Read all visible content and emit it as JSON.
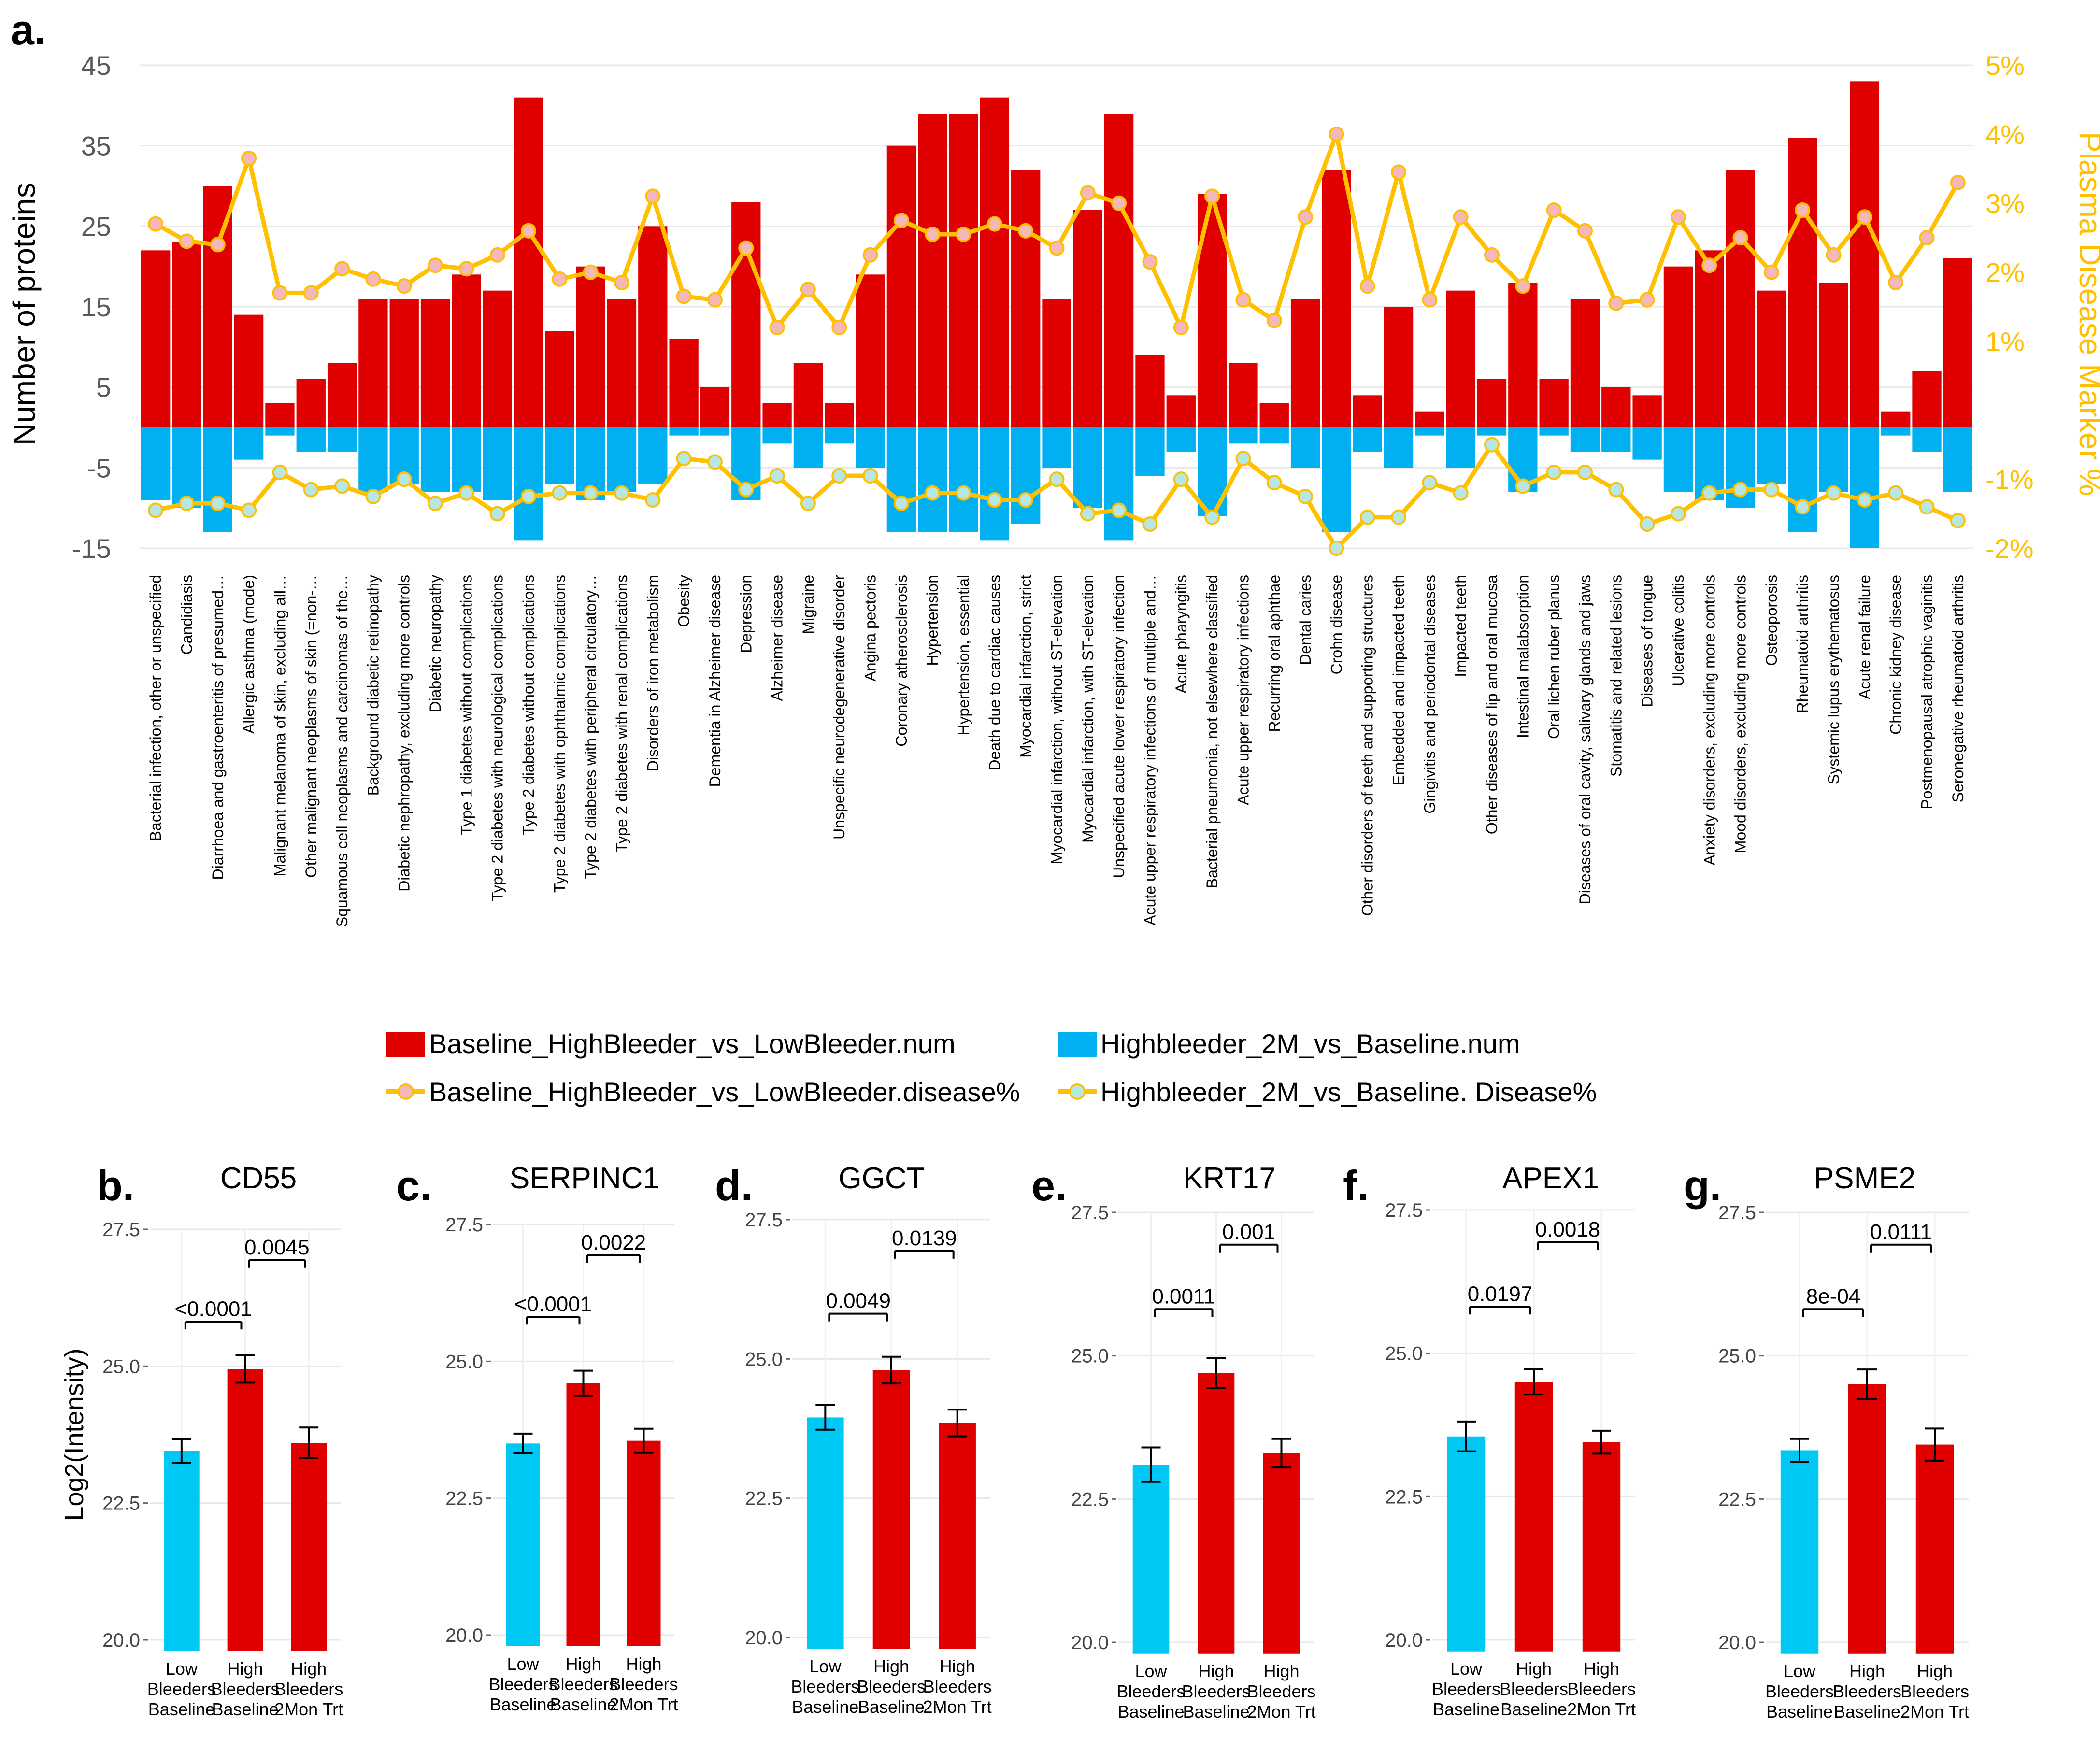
{
  "colors": {
    "red": "#E00000",
    "blue": "#00B0F0",
    "cyan": "#00C8F5",
    "line": "#FFC000",
    "marker_red_fill": "#F4B8B8",
    "marker_blue_fill": "#B8E6E0",
    "grid": "#E8E8E8"
  },
  "panel_a": {
    "label": "a.",
    "left_axis_label": "Number of proteins",
    "right_axis_label": "Plasma Disease Marker %",
    "left_ticks": [
      "45",
      "35",
      "25",
      "15",
      "5",
      "-5",
      "-15"
    ],
    "right_ticks": [
      "5%",
      "4%",
      "3%",
      "2%",
      "1%",
      "-1%",
      "-2%"
    ],
    "legend": {
      "bar_red": "Baseline_HighBleeder_vs_LowBleeder.num",
      "bar_blue": "Highbleeder_2M_vs_Baseline.num",
      "line_red": "Baseline_HighBleeder_vs_LowBleeder.disease%",
      "line_blue": "Highbleeder_2M_vs_Baseline. Disease%"
    }
  },
  "chart_data": [
    {
      "type": "bar",
      "title": "",
      "xlabel": "",
      "ylabel": "Number of proteins",
      "ylim": [
        -15,
        45
      ],
      "y2label": "Plasma Disease Marker %",
      "y2lim": [
        -2,
        5
      ],
      "grid": true,
      "legend": "bottom",
      "categories": [
        "Bacterial infection, other or unspecified",
        "Candidiasis",
        "Diarrhoea and gastroenteritis of presumed…",
        "Allergic asthma (mode)",
        "Malignant melanoma of skin, excluding all…",
        "Other malignant neoplasms of skin (=non-…",
        "Squamous cell neoplasms and carcinomas of the…",
        "Background diabetic retinopathy",
        "Diabetic nephropathy, excluding more controls",
        "Diabetic neuropathy",
        "Type 1 diabetes without complications",
        "Type 2 diabetes with neurological complications",
        "Type 2 diabetes without complications",
        "Type 2 diabetes with ophthalmic complications",
        "Type 2 diabetes with peripheral circulatory…",
        "Type 2 diabetes with renal complications",
        "Disorders of iron metabolism",
        "Obesity",
        "Dementia in Alzheimer disease",
        "Depression",
        "Alzheimer disease",
        "Migraine",
        "Unspecific neurodegenerative disorder",
        "Angina pectoris",
        "Coronary atherosclerosis",
        "Hypertension",
        "Hypertension, essential",
        "Death due to cardiac causes",
        "Myocardial infarction, strict",
        "Myocardial infarction, without ST-elevation",
        "Myocardial infarction, with ST-elevation",
        "Unspecified acute lower respiratory infection",
        "Acute upper respiratory infections of multiple and…",
        "Acute pharyngitis",
        "Bacterial pneumonia, not elsewhere classified",
        "Acute upper respiratory infections",
        "Recurring oral aphthae",
        "Dental caries",
        "Crohn disease",
        "Other disorders of teeth and supporting structures",
        "Embedded and impacted teeth",
        "Gingivitis and periodontal diseases",
        "Impacted teeth",
        "Other diseases of lip and oral mucosa",
        "Intestinal malabsorption",
        "Oral lichen ruber planus",
        "Diseases of oral cavity, salivary glands and jaws",
        "Stomatitis and related lesions",
        "Diseases of tongue",
        "Ulcerative colitis",
        "Anxiety disorders, excluding more controls",
        "Mood disorders, excluding more controls",
        "Osteoporosis",
        "Rheumatoid arthritis",
        "Systemic lupus erythematosus",
        "Acute renal failure",
        "Chronic kidney disease",
        "Postmenopausal atrophic vaginitis",
        "Seronegative rheumatoid arthritis"
      ],
      "series": [
        {
          "name": "Baseline_HighBleeder_vs_LowBleeder.num",
          "axis": "left",
          "kind": "bar",
          "values": [
            22,
            23,
            30,
            14,
            3,
            6,
            8,
            16,
            16,
            16,
            19,
            17,
            41,
            12,
            20,
            16,
            25,
            11,
            5,
            28,
            3,
            8,
            3,
            19,
            35,
            39,
            39,
            41,
            32,
            16,
            27,
            39,
            9,
            4,
            29,
            8,
            3,
            16,
            32,
            4,
            15,
            2,
            17,
            6,
            18,
            6,
            16,
            5,
            4,
            20,
            22,
            32,
            17,
            36,
            18,
            43,
            2,
            7,
            21
          ]
        },
        {
          "name": "Highbleeder_2M_vs_Baseline.num",
          "axis": "left",
          "kind": "bar",
          "values": [
            -9,
            -10,
            -13,
            -4,
            -1,
            -3,
            -3,
            -8,
            -7,
            -8,
            -8,
            -9,
            -14,
            -7,
            -9,
            -8,
            -7,
            -1,
            -1,
            -9,
            -2,
            -5,
            -2,
            -5,
            -13,
            -13,
            -13,
            -14,
            -12,
            -5,
            -10,
            -14,
            -6,
            -3,
            -11,
            -2,
            -2,
            -5,
            -13,
            -3,
            -5,
            -1,
            -5,
            -1,
            -8,
            -1,
            -3,
            -3,
            -4,
            -8,
            -9,
            -10,
            -7,
            -13,
            -8,
            -15,
            -1,
            -3,
            -8
          ]
        },
        {
          "name": "Baseline_HighBleeder_vs_LowBleeder.disease%",
          "axis": "right",
          "kind": "line",
          "values": [
            2.7,
            2.45,
            2.4,
            3.65,
            1.7,
            1.7,
            2.05,
            1.9,
            1.8,
            2.1,
            2.05,
            2.25,
            2.6,
            1.9,
            2.0,
            1.85,
            3.1,
            1.65,
            1.6,
            2.35,
            1.2,
            1.75,
            1.2,
            2.25,
            2.75,
            2.55,
            2.55,
            2.7,
            2.6,
            2.35,
            3.15,
            3.0,
            2.15,
            1.2,
            3.1,
            1.6,
            1.3,
            2.8,
            4.0,
            1.8,
            3.45,
            1.6,
            2.8,
            2.25,
            1.8,
            2.9,
            2.6,
            1.55,
            1.6,
            2.8,
            2.1,
            2.5,
            2.0,
            2.9,
            2.25,
            2.8,
            1.85,
            2.5,
            3.3
          ]
        },
        {
          "name": "Highbleeder_2M_vs_Baseline. Disease%",
          "axis": "right",
          "kind": "line",
          "values": [
            -1.45,
            -1.35,
            -1.35,
            -1.45,
            -0.9,
            -1.15,
            -1.1,
            -1.25,
            -1.0,
            -1.35,
            -1.2,
            -1.5,
            -1.25,
            -1.2,
            -1.2,
            -1.2,
            -1.3,
            -0.7,
            -0.75,
            -1.15,
            -0.95,
            -1.35,
            -0.95,
            -0.95,
            -1.35,
            -1.2,
            -1.2,
            -1.3,
            -1.3,
            -1.0,
            -1.5,
            -1.45,
            -1.65,
            -1.0,
            -1.55,
            -0.7,
            -1.05,
            -1.25,
            -2.0,
            -1.55,
            -1.55,
            -1.05,
            -1.2,
            -0.5,
            -1.1,
            -0.9,
            -0.9,
            -1.15,
            -1.65,
            -1.5,
            -1.2,
            -1.15,
            -1.15,
            -1.4,
            -1.2,
            -1.3,
            -1.2,
            -1.4,
            -1.6
          ]
        }
      ]
    },
    {
      "type": "bar",
      "panel": "b.",
      "title": "CD55",
      "ylabel": "Log2(Intensity)",
      "ylim": [
        20,
        27.5
      ],
      "categories": [
        [
          "Low",
          "Bleeders",
          "Baseline"
        ],
        [
          "High",
          "Bleeders",
          "Baseline"
        ],
        [
          "High",
          "Bleeders",
          "2Mon Trt"
        ]
      ],
      "yticks": [
        "27.5",
        "25.0",
        "22.5",
        "20.0"
      ],
      "values": [
        23.45,
        24.95,
        23.6
      ],
      "errors": [
        0.22,
        0.25,
        0.28
      ],
      "pvalues": [
        {
          "from": 0,
          "to": 1,
          "label": "<0.0001"
        },
        {
          "from": 1,
          "to": 2,
          "label": "0.0045"
        }
      ]
    },
    {
      "type": "bar",
      "panel": "c.",
      "title": "SERPINC1",
      "ylabel": "",
      "ylim": [
        20,
        27.5
      ],
      "categories": [
        [
          "Low",
          "Bleeders",
          "Baseline"
        ],
        [
          "High",
          "Bleeders",
          "Baseline"
        ],
        [
          "High",
          "Bleeders",
          "2Mon Trt"
        ]
      ],
      "yticks": [
        "27.5",
        "25.0",
        "22.5",
        "20.0"
      ],
      "values": [
        23.5,
        24.6,
        23.55
      ],
      "errors": [
        0.18,
        0.23,
        0.22
      ],
      "pvalues": [
        {
          "from": 0,
          "to": 1,
          "label": "<0.0001"
        },
        {
          "from": 1,
          "to": 2,
          "label": "0.0022"
        }
      ]
    },
    {
      "type": "bar",
      "panel": "d.",
      "title": "GGCT",
      "ylabel": "",
      "ylim": [
        20,
        27.5
      ],
      "categories": [
        [
          "Low",
          "Bleeders",
          "Baseline"
        ],
        [
          "High",
          "Bleeders",
          "Baseline"
        ],
        [
          "High",
          "Bleeders",
          "2Mon Trt"
        ]
      ],
      "yticks": [
        "27.5",
        "25.0",
        "22.5",
        "20.0"
      ],
      "values": [
        23.95,
        24.8,
        23.85
      ],
      "errors": [
        0.22,
        0.24,
        0.24
      ],
      "pvalues": [
        {
          "from": 0,
          "to": 1,
          "label": "0.0049"
        },
        {
          "from": 1,
          "to": 2,
          "label": "0.0139"
        }
      ]
    },
    {
      "type": "bar",
      "panel": "e.",
      "title": "KRT17",
      "ylabel": "",
      "ylim": [
        20,
        27.5
      ],
      "categories": [
        [
          "Low",
          "Bleeders",
          "Baseline"
        ],
        [
          "High",
          "Bleeders",
          "Baseline"
        ],
        [
          "High",
          "Bleeders",
          "2Mon Trt"
        ]
      ],
      "yticks": [
        "27.5",
        "25.0",
        "22.5",
        "20.0"
      ],
      "values": [
        23.1,
        24.7,
        23.3
      ],
      "errors": [
        0.3,
        0.26,
        0.25
      ],
      "pvalues": [
        {
          "from": 0,
          "to": 1,
          "label": "0.0011"
        },
        {
          "from": 1,
          "to": 2,
          "label": "0.001"
        }
      ]
    },
    {
      "type": "bar",
      "panel": "f.",
      "title": "APEX1",
      "ylabel": "",
      "ylim": [
        20,
        27.5
      ],
      "categories": [
        [
          "Low",
          "Bleeders",
          "Baseline"
        ],
        [
          "High",
          "Bleeders",
          "Baseline"
        ],
        [
          "High",
          "Bleeders",
          "2Mon Trt"
        ]
      ],
      "yticks": [
        "27.5",
        "25.0",
        "22.5",
        "20.0"
      ],
      "values": [
        23.55,
        24.5,
        23.45
      ],
      "errors": [
        0.26,
        0.22,
        0.2
      ],
      "pvalues": [
        {
          "from": 0,
          "to": 1,
          "label": "0.0197"
        },
        {
          "from": 1,
          "to": 2,
          "label": "0.0018"
        }
      ]
    },
    {
      "type": "bar",
      "panel": "g.",
      "title": "PSME2",
      "ylabel": "",
      "ylim": [
        20,
        27.5
      ],
      "categories": [
        [
          "Low",
          "Bleeders",
          "Baseline"
        ],
        [
          "High",
          "Bleeders",
          "Baseline"
        ],
        [
          "High",
          "Bleeders",
          "2Mon Trt"
        ]
      ],
      "yticks": [
        "27.5",
        "25.0",
        "22.5",
        "20.0"
      ],
      "values": [
        23.35,
        24.5,
        23.45
      ],
      "errors": [
        0.2,
        0.26,
        0.28
      ],
      "pvalues": [
        {
          "from": 0,
          "to": 1,
          "label": "8e-04"
        },
        {
          "from": 1,
          "to": 2,
          "label": "0.0111"
        }
      ]
    }
  ]
}
